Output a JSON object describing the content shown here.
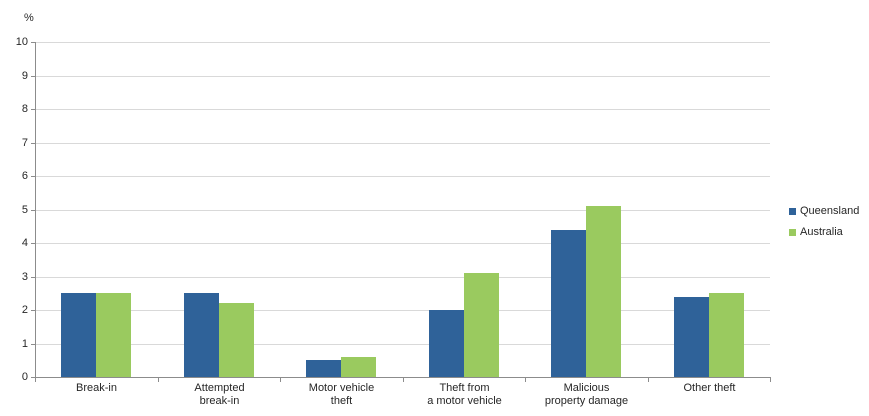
{
  "chart_data": {
    "type": "bar",
    "title": "",
    "unit_label": "%",
    "xlabel": "",
    "ylabel": "%",
    "ylim": [
      0,
      10
    ],
    "ytick_step": 1,
    "yticks": [
      0,
      1,
      2,
      3,
      4,
      5,
      6,
      7,
      8,
      9,
      10
    ],
    "grid": true,
    "legend_position": "right",
    "categories": [
      "Break-in",
      "Attempted break-in",
      "Motor vehicle theft",
      "Theft from a motor vehicle",
      "Malicious property damage",
      "Other theft"
    ],
    "category_labels_display": [
      "Break-in",
      "Attempted\nbreak-in",
      "Motor vehicle\ntheft",
      "Theft from\na motor vehicle",
      "Malicious\nproperty damage",
      "Other theft"
    ],
    "series": [
      {
        "name": "Queensland",
        "color": "#2F6299",
        "values": [
          2.5,
          2.5,
          0.5,
          2.0,
          4.4,
          2.4
        ]
      },
      {
        "name": "Australia",
        "color": "#9ACA5F",
        "values": [
          2.5,
          2.2,
          0.6,
          3.1,
          5.1,
          2.5
        ]
      }
    ]
  },
  "style": {
    "queensland_color": "#2F6299",
    "australia_color": "#9ACA5F",
    "gridline_color": "#D9D9D9",
    "axis_color": "#8C8C8C",
    "text_color": "#262626",
    "background_color": "#FFFFFF"
  }
}
